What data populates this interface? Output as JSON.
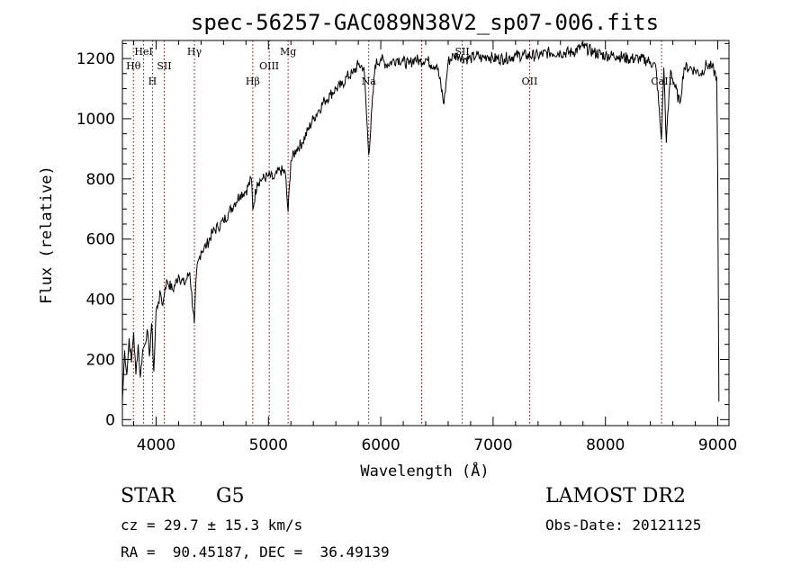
{
  "chart_data": {
    "type": "line",
    "title": "spec-56257-GAC089N38V2_sp07-006.fits",
    "xlabel": "Wavelength (Å)",
    "ylabel": "Flux (relative)",
    "xlim": [
      3700,
      9100
    ],
    "ylim": [
      -20,
      1260
    ],
    "xticks": [
      4000,
      5000,
      6000,
      7000,
      8000,
      9000
    ],
    "xtick_labels": [
      "4000",
      "5000",
      "6000",
      "7000",
      "8000",
      "9000"
    ],
    "yticks": [
      0,
      200,
      400,
      600,
      800,
      1000,
      1200
    ],
    "ytick_labels": [
      "0",
      "200",
      "400",
      "600",
      "800",
      "1000",
      "1200"
    ],
    "grid": false,
    "line_color": "#000000",
    "marker_color": "#8b0000",
    "lines": [
      {
        "label": "Hθ",
        "wavelength": 3798,
        "row": 1
      },
      {
        "label": "HeI",
        "wavelength": 3889,
        "row": 0
      },
      {
        "label": "H",
        "wavelength": 3968,
        "row": 2
      },
      {
        "label": "SII",
        "wavelength": 4072,
        "row": 1
      },
      {
        "label": "Hγ",
        "wavelength": 4341,
        "row": 0
      },
      {
        "label": "Hβ",
        "wavelength": 4861,
        "row": 2
      },
      {
        "label": "OIII",
        "wavelength": 5007,
        "row": 1
      },
      {
        "label": "Mg",
        "wavelength": 5175,
        "row": 0
      },
      {
        "label": "Na",
        "wavelength": 5893,
        "row": 2
      },
      {
        "label": "",
        "wavelength": 6364,
        "row": 0
      },
      {
        "label": "SII",
        "wavelength": 6725,
        "row": 0
      },
      {
        "label": "OII",
        "wavelength": 7325,
        "row": 2
      },
      {
        "label": "CaII",
        "wavelength": 8500,
        "row": 2
      }
    ],
    "series": [
      {
        "x": [
          3700,
          3720,
          3740,
          3760,
          3780,
          3800,
          3820,
          3840,
          3860,
          3880,
          3900,
          3920,
          3940,
          3960,
          3980,
          4000,
          4020,
          4040,
          4060,
          4080,
          4100,
          4150,
          4200,
          4250,
          4300,
          4340,
          4360,
          4400,
          4450,
          4500,
          4550,
          4600,
          4650,
          4700,
          4750,
          4800,
          4850,
          4861,
          4900,
          4950,
          5000,
          5050,
          5100,
          5150,
          5175,
          5200,
          5250,
          5300,
          5350,
          5400,
          5450,
          5500,
          5550,
          5600,
          5650,
          5700,
          5750,
          5800,
          5850,
          5893,
          5950,
          6000,
          6050,
          6100,
          6150,
          6200,
          6250,
          6300,
          6350,
          6400,
          6450,
          6500,
          6563,
          6600,
          6650,
          6700,
          6750,
          6800,
          6850,
          6900,
          6950,
          7000,
          7100,
          7200,
          7300,
          7400,
          7500,
          7600,
          7700,
          7800,
          7900,
          8000,
          8100,
          8200,
          8300,
          8400,
          8450,
          8498,
          8520,
          8542,
          8580,
          8662,
          8700,
          8750,
          8800,
          8850,
          8900,
          8950,
          8990,
          9000,
          9010
        ],
        "y": [
          60,
          230,
          150,
          270,
          190,
          290,
          150,
          250,
          140,
          230,
          250,
          300,
          210,
          320,
          160,
          360,
          390,
          420,
          380,
          440,
          460,
          430,
          480,
          450,
          490,
          320,
          490,
          560,
          580,
          620,
          640,
          660,
          690,
          720,
          750,
          760,
          800,
          700,
          790,
          800,
          810,
          800,
          830,
          820,
          690,
          860,
          900,
          920,
          960,
          1000,
          1030,
          1060,
          1080,
          1100,
          1110,
          1140,
          1150,
          1180,
          1170,
          880,
          1180,
          1200,
          1180,
          1190,
          1200,
          1190,
          1180,
          1200,
          1190,
          1200,
          1180,
          1180,
          1050,
          1190,
          1210,
          1210,
          1200,
          1200,
          1210,
          1200,
          1210,
          1200,
          1200,
          1210,
          1210,
          1210,
          1220,
          1220,
          1220,
          1240,
          1220,
          1210,
          1210,
          1200,
          1200,
          1190,
          1170,
          930,
          1170,
          920,
          1160,
          1050,
          1170,
          1170,
          1160,
          1150,
          1180,
          1170,
          1140,
          800,
          60
        ]
      }
    ]
  },
  "footer": {
    "object_class": "STAR",
    "subclass": "G5",
    "cz": "cz = 29.7 ± 15.3 km/s",
    "coords": "RA =  90.45187, DEC =  36.49139",
    "survey": "LAMOST DR2",
    "obs_date": "Obs-Date: 20121125"
  }
}
